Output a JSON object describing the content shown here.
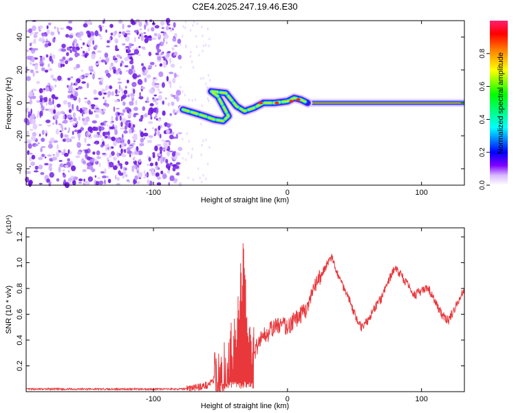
{
  "title": "C2E4.2025.247.19.46.E30",
  "chart_data": [
    {
      "type": "heatmap",
      "title": "C2E4.2025.247.19.46.E30",
      "xlabel": "Height of straight line (km)",
      "ylabel": "Frequency (Hz)",
      "xlim": [
        -195,
        132
      ],
      "ylim": [
        -50,
        50
      ],
      "xticks": [
        -100,
        0,
        100
      ],
      "yticks": [
        -40,
        -20,
        0,
        20,
        40
      ],
      "noise_region_x": [
        -195,
        -80
      ],
      "ridge": [
        {
          "x": -78,
          "y": -4
        },
        {
          "x": -70,
          "y": -6
        },
        {
          "x": -62,
          "y": -8
        },
        {
          "x": -55,
          "y": -10
        },
        {
          "x": -48,
          "y": -11
        },
        {
          "x": -44,
          "y": -8
        },
        {
          "x": -48,
          "y": -2
        },
        {
          "x": -52,
          "y": 4
        },
        {
          "x": -57,
          "y": 7
        },
        {
          "x": -46,
          "y": 6
        },
        {
          "x": -38,
          "y": -2
        },
        {
          "x": -32,
          "y": -5
        },
        {
          "x": -25,
          "y": -3
        },
        {
          "x": -18,
          "y": 0
        },
        {
          "x": -10,
          "y": 0
        },
        {
          "x": 0,
          "y": 1
        },
        {
          "x": 5,
          "y": 3
        },
        {
          "x": 10,
          "y": 2
        },
        {
          "x": 15,
          "y": 0
        },
        {
          "x": 60,
          "y": 0
        },
        {
          "x": 132,
          "y": 0
        }
      ],
      "colorbar": {
        "label": "Normalized spectral amplitude",
        "range": [
          0,
          1
        ],
        "ticks": [
          0.0,
          0.2,
          0.4,
          0.6,
          0.8
        ]
      }
    },
    {
      "type": "line",
      "xlabel": "Height of straight line (km)",
      "ylabel": "SNR (10 * v/v)",
      "multiplier": "(x10⁴)",
      "xlim": [
        -195,
        132
      ],
      "ylim": [
        0,
        1.27
      ],
      "xticks": [
        -100,
        0,
        100
      ],
      "yticks": [
        0.2,
        0.4,
        0.6,
        0.8,
        1.0,
        1.2
      ],
      "color": "#e8383c",
      "series": [
        {
          "name": "SNR",
          "x": [
            -195,
            -150,
            -100,
            -80,
            -70,
            -60,
            -50,
            -45,
            -40,
            -36,
            -33,
            -31,
            -28,
            -25,
            -20,
            -15,
            -10,
            -5,
            0,
            5,
            10,
            15,
            20,
            25,
            30,
            33,
            36,
            40,
            45,
            50,
            55,
            60,
            65,
            70,
            75,
            80,
            85,
            90,
            95,
            100,
            105,
            110,
            115,
            120,
            125,
            132
          ],
          "values": [
            0.02,
            0.02,
            0.02,
            0.02,
            0.03,
            0.05,
            0.12,
            0.25,
            0.4,
            0.7,
            1.0,
            0.6,
            0.35,
            0.3,
            0.42,
            0.45,
            0.5,
            0.52,
            0.5,
            0.55,
            0.6,
            0.65,
            0.8,
            0.9,
            1.0,
            1.04,
            0.95,
            0.85,
            0.75,
            0.6,
            0.5,
            0.55,
            0.65,
            0.72,
            0.85,
            0.96,
            0.9,
            0.82,
            0.75,
            0.78,
            0.8,
            0.7,
            0.6,
            0.55,
            0.65,
            0.8
          ]
        }
      ]
    }
  ]
}
